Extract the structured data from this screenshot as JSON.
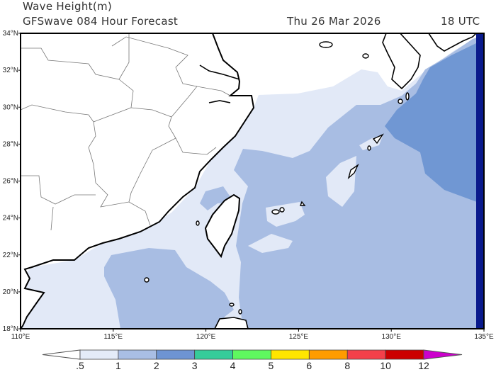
{
  "header": {
    "title": "Wave Height(m)",
    "subtitle": "GFSwave 084 Hour Forecast",
    "valid_date": "Thu 26 Mar 2026",
    "valid_time": "18 UTC"
  },
  "map": {
    "lon_range": [
      110,
      135
    ],
    "lat_range": [
      18,
      34
    ],
    "lon_ticks": [
      "110°E",
      "115°E",
      "120°E",
      "125°E",
      "130°E",
      "135°E"
    ],
    "lat_ticks": [
      "34°N",
      "32°N",
      "30°N",
      "28°N",
      "26°N",
      "24°N",
      "22°N",
      "20°N",
      "18°N"
    ],
    "field_colors": {
      "land": "#ffffff",
      "lt_0_5": "#ffffff",
      "0_5_1": "#e2e9f7",
      "1_2": "#a8bde3",
      "2_3": "#7097d3",
      "edge": "#0a1a8c",
      "coast": "#000000",
      "borders": "#777777"
    }
  },
  "colorbar": {
    "labels": [
      ".5",
      "1",
      "2",
      "3",
      "4",
      "5",
      "6",
      "8",
      "10",
      "12"
    ],
    "under_color": "#ffffff",
    "colors": [
      "#e4ebf8",
      "#a9bee4",
      "#6e94d3",
      "#35cc9a",
      "#5ff85f",
      "#ffe600",
      "#ff9c00",
      "#f4404a",
      "#cc0000"
    ],
    "over_color": "#cc00cc"
  }
}
